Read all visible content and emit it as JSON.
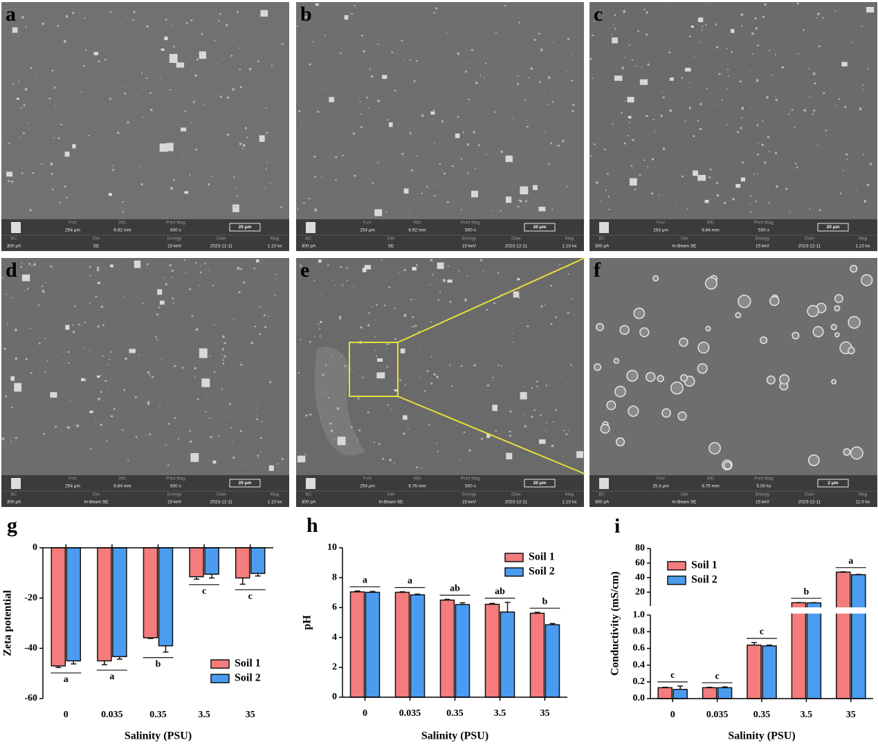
{
  "info_headers": [
    "FoV",
    "WD",
    "Print Mag",
    "BC",
    "Det",
    "Energy",
    "Date",
    "Mag"
  ],
  "panels": [
    {
      "label": "a",
      "fov": "254 μm",
      "wd": "6.92 mm",
      "print_mag": "500 x",
      "scale": "20 μm",
      "bc": "300 pA",
      "det": "SE",
      "energy": "15 keV",
      "date": "2023-12-11",
      "mag": "1.10 kx"
    },
    {
      "label": "b",
      "fov": "254 μm",
      "wd": "6.92 mm",
      "print_mag": "500 x",
      "scale": "20 μm",
      "bc": "300 pA",
      "det": "SE",
      "energy": "15 keV",
      "date": "2023-12-11",
      "mag": "1.10 kx"
    },
    {
      "label": "c",
      "fov": "254 μm",
      "wd": "6.84 mm",
      "print_mag": "500 x",
      "scale": "20 μm",
      "bc": "300 pA",
      "det": "In-Beam SE",
      "energy": "15 keV",
      "date": "2023-12-11",
      "mag": "1.10 kx"
    },
    {
      "label": "d",
      "fov": "254 μm",
      "wd": "6.84 mm",
      "print_mag": "500 x",
      "scale": "20 μm",
      "bc": "300 pA",
      "det": "In-Beam SE",
      "energy": "15 keV",
      "date": "2023-12-11",
      "mag": "1.10 kx"
    },
    {
      "label": "e",
      "fov": "254 μm",
      "wd": "6.76 mm",
      "print_mag": "500 x",
      "scale": "20 μm",
      "bc": "300 pA",
      "det": "In-Beam SE",
      "energy": "15 keV",
      "date": "2023-12-11",
      "mag": "1.10 kx"
    },
    {
      "label": "f",
      "fov": "25.4 μm",
      "wd": "6.75 mm",
      "print_mag": "5.00 kx",
      "scale": "2 μm",
      "bc": "300 pA",
      "det": "In-Beam SE",
      "energy": "15 keV",
      "date": "2023-12-11",
      "mag": "11.0 kx"
    }
  ],
  "chart_data": [
    {
      "type": "bar",
      "panel_label": "g",
      "y_label": "Zeta potential",
      "x_label": "Salinity (PSU)",
      "categories": [
        "0",
        "0.035",
        "0.35",
        "3.5",
        "35"
      ],
      "series": [
        {
          "name": "Soil 1",
          "color": "#f47c7c",
          "values": [
            -47,
            -45,
            -35.8,
            -11.5,
            -12
          ],
          "errors": [
            0.6,
            1.5,
            0.3,
            1,
            2.5
          ]
        },
        {
          "name": "Soil 2",
          "color": "#4b9cf0",
          "values": [
            -45,
            -43.3,
            -39,
            -10.5,
            -10.2
          ],
          "errors": [
            1.2,
            1,
            2.5,
            1.5,
            1
          ]
        }
      ],
      "significance": [
        "a",
        "a",
        "b",
        "c",
        "c"
      ],
      "ylim": [
        -60,
        0
      ],
      "yticks": [
        0,
        -20,
        -40,
        -60
      ],
      "legend": "lower right"
    },
    {
      "type": "bar",
      "panel_label": "h",
      "y_label": "pH",
      "x_label": "Salinity (PSU)",
      "categories": [
        "0",
        "0.035",
        "0.35",
        "3.5",
        "35"
      ],
      "series": [
        {
          "name": "Soil 1",
          "color": "#f47c7c",
          "values": [
            7.05,
            7.02,
            6.5,
            6.22,
            5.62
          ],
          "errors": [
            0.06,
            0.04,
            0.05,
            0.06,
            0.06
          ]
        },
        {
          "name": "Soil 2",
          "color": "#4b9cf0",
          "values": [
            7.02,
            6.85,
            6.2,
            5.7,
            4.85
          ],
          "errors": [
            0.06,
            0.05,
            0.12,
            0.65,
            0.08
          ]
        }
      ],
      "significance": [
        "a",
        "a",
        "ab",
        "ab",
        "b"
      ],
      "ylim": [
        0,
        10
      ],
      "yticks": [
        0,
        2,
        4,
        6,
        8,
        10
      ],
      "legend": "upper right"
    },
    {
      "type": "bar",
      "panel_label": "i",
      "y_label": "Conductivity (mS/cm)",
      "x_label": "Salinity (PSU)",
      "categories": [
        "0",
        "0.035",
        "0.35",
        "3.5",
        "35"
      ],
      "series": [
        {
          "name": "Soil 1",
          "color": "#f47c7c",
          "values": [
            0.13,
            0.13,
            0.64,
            5.5,
            47.5
          ],
          "errors": [
            0.005,
            0.005,
            0.03,
            0.3,
            0.5
          ]
        },
        {
          "name": "Soil 2",
          "color": "#4b9cf0",
          "values": [
            0.11,
            0.13,
            0.63,
            5.3,
            44
          ],
          "errors": [
            0.04,
            0.01,
            0.01,
            0.3,
            0.5
          ]
        }
      ],
      "significance": [
        "c",
        "c",
        "c",
        "b",
        "a"
      ],
      "ylim": [
        0,
        80
      ],
      "break_at": 1,
      "yticks": [
        {
          "value": 0,
          "label": "0.0"
        },
        0.2,
        0.4,
        0.6,
        0.8,
        {
          "value": 1,
          "label": "1.0"
        },
        20,
        40,
        60,
        80
      ],
      "legend": "upper left"
    }
  ]
}
